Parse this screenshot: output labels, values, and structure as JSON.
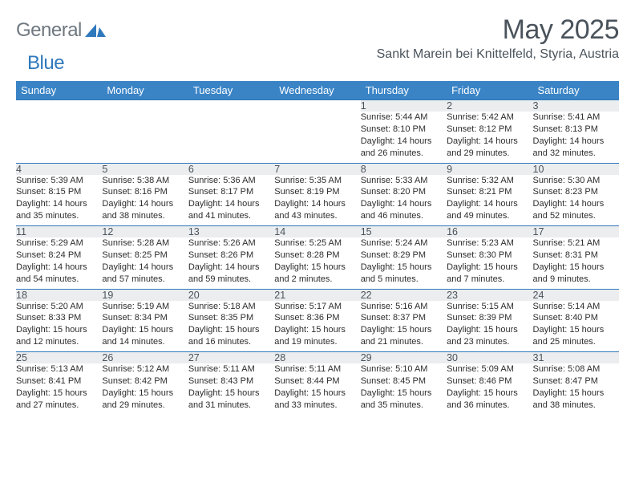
{
  "brand": {
    "a": "General",
    "b": "Blue",
    "mark_color": "#2e78bc"
  },
  "header": {
    "title": "May 2025",
    "location": "Sankt Marein bei Knittelfeld, Styria, Austria",
    "title_color": "#4a535b",
    "header_bg": "#3a84c6",
    "band_bg": "#ebedef",
    "rule_color": "#2e78bc"
  },
  "columns": [
    "Sunday",
    "Monday",
    "Tuesday",
    "Wednesday",
    "Thursday",
    "Friday",
    "Saturday"
  ],
  "weeks": [
    [
      null,
      null,
      null,
      null,
      {
        "n": "1",
        "sr": "5:44 AM",
        "ss": "8:10 PM",
        "dl": "14 hours and 26 minutes."
      },
      {
        "n": "2",
        "sr": "5:42 AM",
        "ss": "8:12 PM",
        "dl": "14 hours and 29 minutes."
      },
      {
        "n": "3",
        "sr": "5:41 AM",
        "ss": "8:13 PM",
        "dl": "14 hours and 32 minutes."
      }
    ],
    [
      {
        "n": "4",
        "sr": "5:39 AM",
        "ss": "8:15 PM",
        "dl": "14 hours and 35 minutes."
      },
      {
        "n": "5",
        "sr": "5:38 AM",
        "ss": "8:16 PM",
        "dl": "14 hours and 38 minutes."
      },
      {
        "n": "6",
        "sr": "5:36 AM",
        "ss": "8:17 PM",
        "dl": "14 hours and 41 minutes."
      },
      {
        "n": "7",
        "sr": "5:35 AM",
        "ss": "8:19 PM",
        "dl": "14 hours and 43 minutes."
      },
      {
        "n": "8",
        "sr": "5:33 AM",
        "ss": "8:20 PM",
        "dl": "14 hours and 46 minutes."
      },
      {
        "n": "9",
        "sr": "5:32 AM",
        "ss": "8:21 PM",
        "dl": "14 hours and 49 minutes."
      },
      {
        "n": "10",
        "sr": "5:30 AM",
        "ss": "8:23 PM",
        "dl": "14 hours and 52 minutes."
      }
    ],
    [
      {
        "n": "11",
        "sr": "5:29 AM",
        "ss": "8:24 PM",
        "dl": "14 hours and 54 minutes."
      },
      {
        "n": "12",
        "sr": "5:28 AM",
        "ss": "8:25 PM",
        "dl": "14 hours and 57 minutes."
      },
      {
        "n": "13",
        "sr": "5:26 AM",
        "ss": "8:26 PM",
        "dl": "14 hours and 59 minutes."
      },
      {
        "n": "14",
        "sr": "5:25 AM",
        "ss": "8:28 PM",
        "dl": "15 hours and 2 minutes."
      },
      {
        "n": "15",
        "sr": "5:24 AM",
        "ss": "8:29 PM",
        "dl": "15 hours and 5 minutes."
      },
      {
        "n": "16",
        "sr": "5:23 AM",
        "ss": "8:30 PM",
        "dl": "15 hours and 7 minutes."
      },
      {
        "n": "17",
        "sr": "5:21 AM",
        "ss": "8:31 PM",
        "dl": "15 hours and 9 minutes."
      }
    ],
    [
      {
        "n": "18",
        "sr": "5:20 AM",
        "ss": "8:33 PM",
        "dl": "15 hours and 12 minutes."
      },
      {
        "n": "19",
        "sr": "5:19 AM",
        "ss": "8:34 PM",
        "dl": "15 hours and 14 minutes."
      },
      {
        "n": "20",
        "sr": "5:18 AM",
        "ss": "8:35 PM",
        "dl": "15 hours and 16 minutes."
      },
      {
        "n": "21",
        "sr": "5:17 AM",
        "ss": "8:36 PM",
        "dl": "15 hours and 19 minutes."
      },
      {
        "n": "22",
        "sr": "5:16 AM",
        "ss": "8:37 PM",
        "dl": "15 hours and 21 minutes."
      },
      {
        "n": "23",
        "sr": "5:15 AM",
        "ss": "8:39 PM",
        "dl": "15 hours and 23 minutes."
      },
      {
        "n": "24",
        "sr": "5:14 AM",
        "ss": "8:40 PM",
        "dl": "15 hours and 25 minutes."
      }
    ],
    [
      {
        "n": "25",
        "sr": "5:13 AM",
        "ss": "8:41 PM",
        "dl": "15 hours and 27 minutes."
      },
      {
        "n": "26",
        "sr": "5:12 AM",
        "ss": "8:42 PM",
        "dl": "15 hours and 29 minutes."
      },
      {
        "n": "27",
        "sr": "5:11 AM",
        "ss": "8:43 PM",
        "dl": "15 hours and 31 minutes."
      },
      {
        "n": "28",
        "sr": "5:11 AM",
        "ss": "8:44 PM",
        "dl": "15 hours and 33 minutes."
      },
      {
        "n": "29",
        "sr": "5:10 AM",
        "ss": "8:45 PM",
        "dl": "15 hours and 35 minutes."
      },
      {
        "n": "30",
        "sr": "5:09 AM",
        "ss": "8:46 PM",
        "dl": "15 hours and 36 minutes."
      },
      {
        "n": "31",
        "sr": "5:08 AM",
        "ss": "8:47 PM",
        "dl": "15 hours and 38 minutes."
      }
    ]
  ],
  "labels": {
    "sunrise": "Sunrise: ",
    "sunset": "Sunset: ",
    "daylight": "Daylight: "
  }
}
